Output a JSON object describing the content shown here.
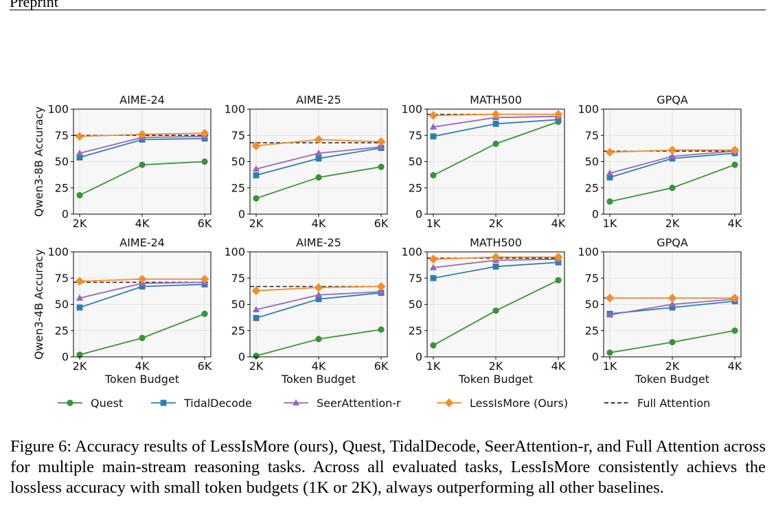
{
  "header": {
    "text": "Preprint"
  },
  "figure": {
    "row_labels": [
      "Qwen3-8B Accuracy",
      "Qwen3-4B Accuracy"
    ],
    "xlabel": "Token Budget",
    "legend": [
      {
        "name": "Quest",
        "color": "#3a923a",
        "marker": "circle"
      },
      {
        "name": "TidalDecode",
        "color": "#2e7eac",
        "marker": "square"
      },
      {
        "name": "SeerAttention-r",
        "color": "#9467bd",
        "marker": "triangle"
      },
      {
        "name": "LessIsMore (Ours)",
        "color": "#f28e2b",
        "marker": "diamond"
      },
      {
        "name": "Full Attention",
        "color": "#000000",
        "marker": "dashed"
      }
    ],
    "colors": {
      "quest": "#3a923a",
      "tidal": "#2e7eac",
      "seer": "#9467bd",
      "lim": "#f28e2b",
      "panel_bg": "#f7f7f7",
      "grid": "#e2e2e2"
    }
  },
  "chart_data": [
    {
      "type": "line",
      "title": "AIME-24",
      "row": "Qwen3-8B",
      "ylabel": "Qwen3-8B Accuracy",
      "x": [
        "2K",
        "4K",
        "6K"
      ],
      "ylim": [
        0,
        100
      ],
      "yticks": [
        0,
        25,
        50,
        75,
        100
      ],
      "series": [
        {
          "name": "Quest",
          "values": [
            18,
            47,
            50
          ]
        },
        {
          "name": "TidalDecode",
          "values": [
            54,
            71,
            72
          ]
        },
        {
          "name": "SeerAttention-r",
          "values": [
            58,
            73,
            74
          ]
        },
        {
          "name": "LessIsMore (Ours)",
          "values": [
            74,
            76,
            77
          ]
        }
      ],
      "full_attention": 75
    },
    {
      "type": "line",
      "title": "AIME-25",
      "row": "Qwen3-8B",
      "x": [
        "2K",
        "4K",
        "6K"
      ],
      "ylim": [
        0,
        100
      ],
      "yticks": [
        0,
        25,
        50,
        75,
        100
      ],
      "series": [
        {
          "name": "Quest",
          "values": [
            15,
            35,
            45
          ]
        },
        {
          "name": "TidalDecode",
          "values": [
            37,
            53,
            63
          ]
        },
        {
          "name": "SeerAttention-r",
          "values": [
            43,
            58,
            64
          ]
        },
        {
          "name": "LessIsMore (Ours)",
          "values": [
            65,
            71,
            69
          ]
        }
      ],
      "full_attention": 68
    },
    {
      "type": "line",
      "title": "MATH500",
      "row": "Qwen3-8B",
      "x": [
        "1K",
        "2K",
        "4K"
      ],
      "ylim": [
        0,
        100
      ],
      "yticks": [
        0,
        25,
        50,
        75,
        100
      ],
      "series": [
        {
          "name": "Quest",
          "values": [
            37,
            67,
            88
          ]
        },
        {
          "name": "TidalDecode",
          "values": [
            74,
            86,
            90
          ]
        },
        {
          "name": "SeerAttention-r",
          "values": [
            83,
            92,
            93
          ]
        },
        {
          "name": "LessIsMore (Ours)",
          "values": [
            94,
            95,
            95
          ]
        }
      ],
      "full_attention": 95
    },
    {
      "type": "line",
      "title": "GPQA",
      "row": "Qwen3-8B",
      "x": [
        "1K",
        "2K",
        "4K"
      ],
      "ylim": [
        0,
        100
      ],
      "yticks": [
        0,
        25,
        50,
        75,
        100
      ],
      "series": [
        {
          "name": "Quest",
          "values": [
            12,
            25,
            47
          ]
        },
        {
          "name": "TidalDecode",
          "values": [
            35,
            53,
            58
          ]
        },
        {
          "name": "SeerAttention-r",
          "values": [
            39,
            55,
            60
          ]
        },
        {
          "name": "LessIsMore (Ours)",
          "values": [
            59,
            61,
            61
          ]
        }
      ],
      "full_attention": 60
    },
    {
      "type": "line",
      "title": "AIME-24",
      "row": "Qwen3-4B",
      "ylabel": "Qwen3-4B Accuracy",
      "x": [
        "2K",
        "4K",
        "6K"
      ],
      "ylim": [
        0,
        100
      ],
      "yticks": [
        0,
        25,
        50,
        75,
        100
      ],
      "series": [
        {
          "name": "Quest",
          "values": [
            2,
            18,
            41
          ]
        },
        {
          "name": "TidalDecode",
          "values": [
            47,
            67,
            69
          ]
        },
        {
          "name": "SeerAttention-r",
          "values": [
            56,
            70,
            71
          ]
        },
        {
          "name": "LessIsMore (Ours)",
          "values": [
            72,
            74,
            74
          ]
        }
      ],
      "full_attention": 71
    },
    {
      "type": "line",
      "title": "AIME-25",
      "row": "Qwen3-4B",
      "x": [
        "2K",
        "4K",
        "6K"
      ],
      "ylim": [
        0,
        100
      ],
      "yticks": [
        0,
        25,
        50,
        75,
        100
      ],
      "series": [
        {
          "name": "Quest",
          "values": [
            1,
            17,
            26
          ]
        },
        {
          "name": "TidalDecode",
          "values": [
            37,
            55,
            61
          ]
        },
        {
          "name": "SeerAttention-r",
          "values": [
            45,
            59,
            62
          ]
        },
        {
          "name": "LessIsMore (Ours)",
          "values": [
            63,
            66,
            67
          ]
        }
      ],
      "full_attention": 67
    },
    {
      "type": "line",
      "title": "MATH500",
      "row": "Qwen3-4B",
      "x": [
        "1K",
        "2K",
        "4K"
      ],
      "ylim": [
        0,
        100
      ],
      "yticks": [
        0,
        25,
        50,
        75,
        100
      ],
      "series": [
        {
          "name": "Quest",
          "values": [
            11,
            44,
            73
          ]
        },
        {
          "name": "TidalDecode",
          "values": [
            75,
            86,
            90
          ]
        },
        {
          "name": "SeerAttention-r",
          "values": [
            85,
            92,
            93
          ]
        },
        {
          "name": "LessIsMore (Ours)",
          "values": [
            93,
            95,
            95
          ]
        }
      ],
      "full_attention": 94
    },
    {
      "type": "line",
      "title": "GPQA",
      "row": "Qwen3-4B",
      "x": [
        "1K",
        "2K",
        "4K"
      ],
      "ylim": [
        0,
        100
      ],
      "yticks": [
        0,
        25,
        50,
        75,
        100
      ],
      "series": [
        {
          "name": "Quest",
          "values": [
            4,
            14,
            25
          ]
        },
        {
          "name": "TidalDecode",
          "values": [
            41,
            47,
            53
          ]
        },
        {
          "name": "SeerAttention-r",
          "values": [
            40,
            50,
            55
          ]
        },
        {
          "name": "LessIsMore (Ours)",
          "values": [
            56,
            56,
            56
          ]
        }
      ],
      "full_attention": 56
    }
  ],
  "caption": {
    "text": "Figure 6: Accuracy results of LessIsMore (ours), Quest, TidalDecode, SeerAttention-r, and Full Attention across for multiple main-stream reasoning tasks. Across all evaluated tasks, LessIsMore consistently achievs the lossless accuracy with small token budgets (1K or 2K), always outperforming all other baselines."
  }
}
